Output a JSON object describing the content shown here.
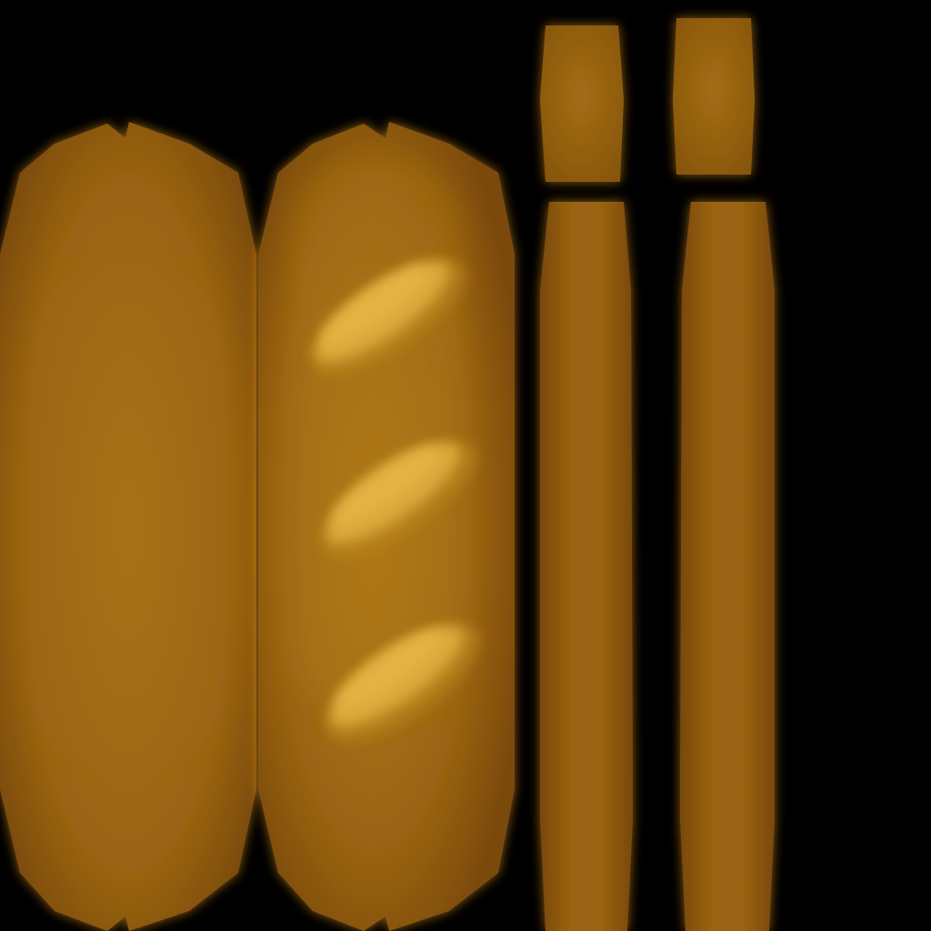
{
  "texture": {
    "subject": "baguette",
    "background_color": "#000000",
    "crust_dark_color": "#7d4c08",
    "crust_mid_color": "#9a6412",
    "crust_light_color": "#a97416",
    "highlight_color": "#e0ae3c",
    "glow_color": "#ffa51e",
    "pieces": [
      {
        "id": "side-panel-plain",
        "scores": 0
      },
      {
        "id": "side-panel-scored",
        "scores": 3
      },
      {
        "id": "end-cap-left",
        "scores": 0
      },
      {
        "id": "end-cap-right",
        "scores": 0
      },
      {
        "id": "bottom-strip-left",
        "scores": 0
      },
      {
        "id": "bottom-strip-right",
        "scores": 0
      }
    ]
  }
}
